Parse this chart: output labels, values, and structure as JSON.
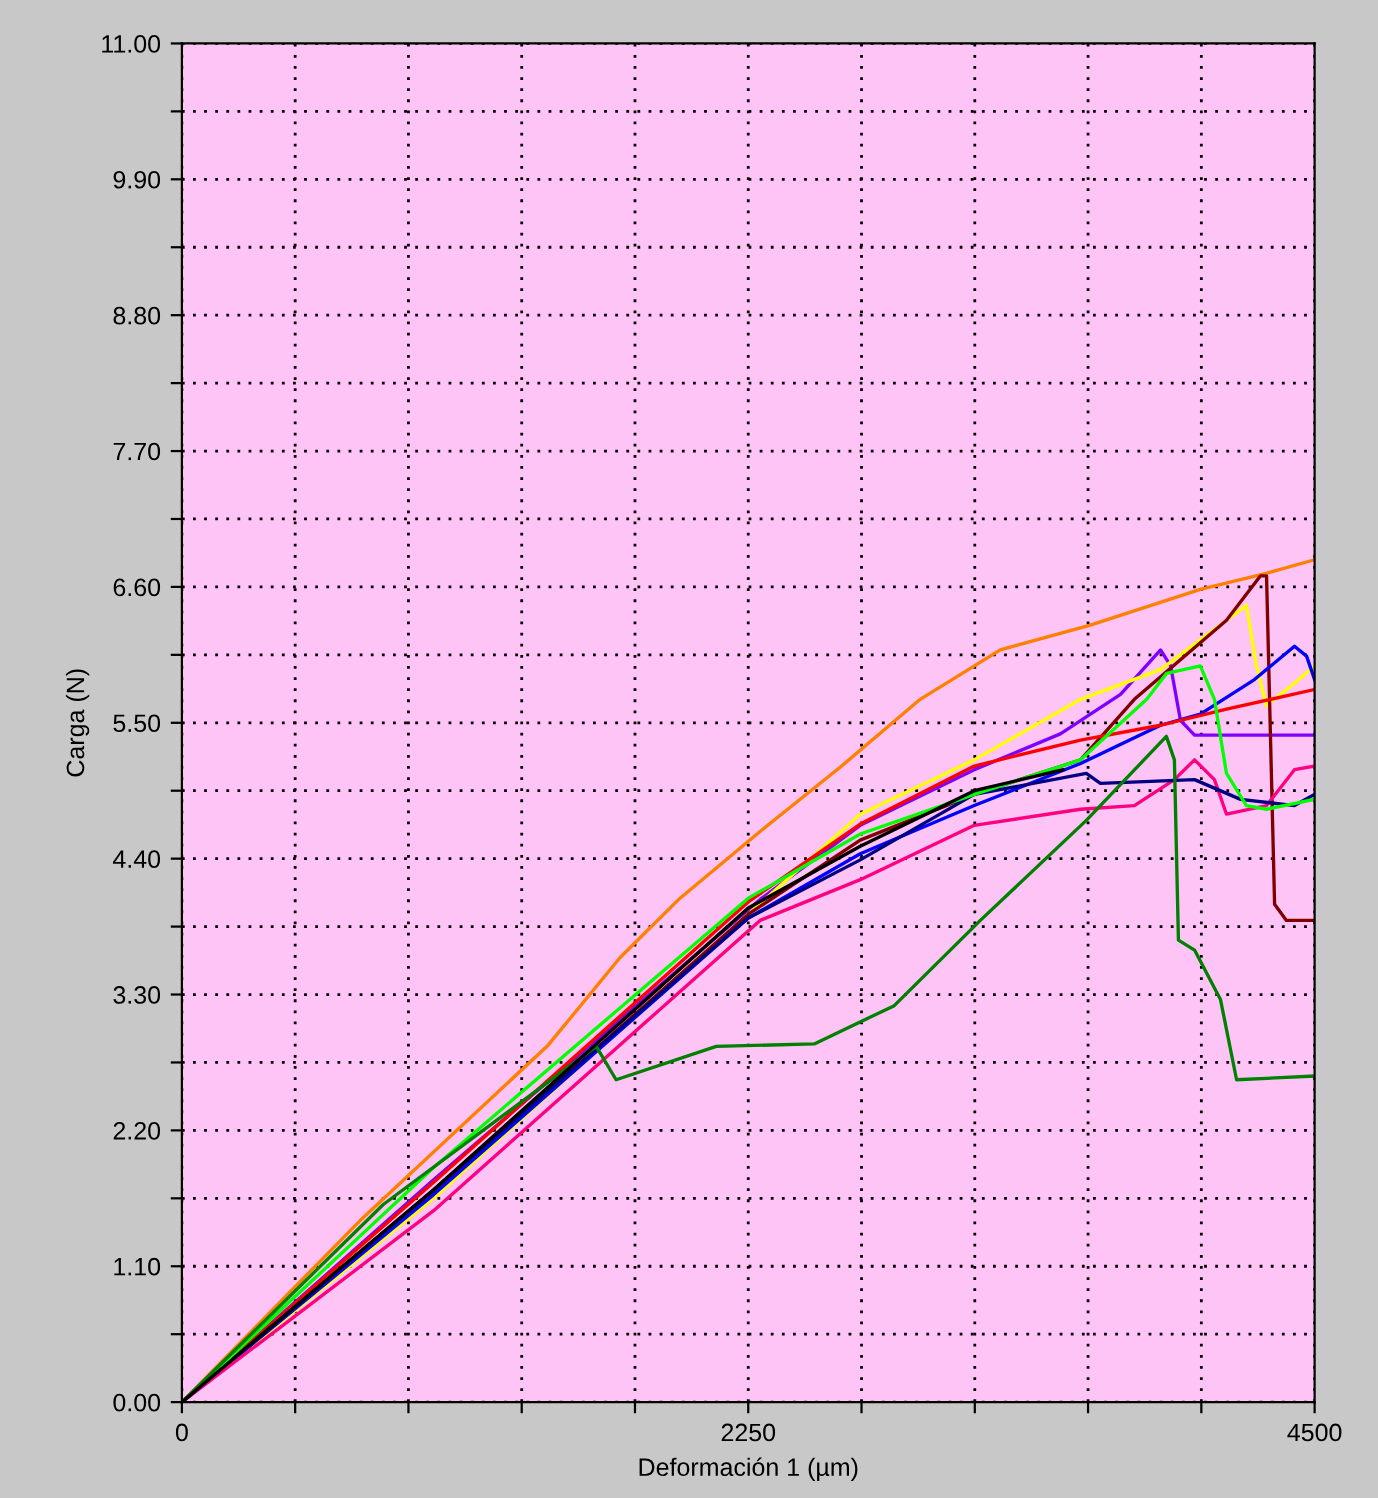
{
  "chart_data": {
    "type": "line",
    "xlabel": "Deformación 1 (µm)",
    "ylabel": "Carga (N)",
    "xlim": [
      0,
      4500
    ],
    "ylim": [
      0,
      11
    ],
    "xticks": [
      0,
      {
        "value": 450,
        "label": null
      },
      {
        "value": 900,
        "label": null
      },
      {
        "value": 1350,
        "label": null
      },
      {
        "value": 1800,
        "label": null
      },
      2250,
      {
        "value": 2700,
        "label": null
      },
      {
        "value": 3150,
        "label": null
      },
      {
        "value": 3600,
        "label": null
      },
      {
        "value": 4050,
        "label": null
      },
      4500
    ],
    "yticks": [
      {
        "value": 0,
        "label": "0.00"
      },
      {
        "value": 0.55,
        "label": null
      },
      {
        "value": 1.1,
        "label": "1.10"
      },
      {
        "value": 1.65,
        "label": null
      },
      {
        "value": 2.2,
        "label": "2.20"
      },
      {
        "value": 2.75,
        "label": null
      },
      {
        "value": 3.3,
        "label": "3.30"
      },
      {
        "value": 3.85,
        "label": null
      },
      {
        "value": 4.4,
        "label": "4.40"
      },
      {
        "value": 4.95,
        "label": null
      },
      {
        "value": 5.5,
        "label": "5.50"
      },
      {
        "value": 6.05,
        "label": null
      },
      {
        "value": 6.6,
        "label": "6.60"
      },
      {
        "value": 7.15,
        "label": null
      },
      {
        "value": 7.7,
        "label": "7.70"
      },
      {
        "value": 8.25,
        "label": null
      },
      {
        "value": 8.8,
        "label": "8.80"
      },
      {
        "value": 9.35,
        "label": null
      },
      {
        "value": 9.9,
        "label": "9.90"
      },
      {
        "value": 10.45,
        "label": null
      },
      {
        "value": 11,
        "label": "11.00"
      }
    ],
    "grid": true,
    "line_style": "solid",
    "marker": "none",
    "series": [
      {
        "color": "#ff8000",
        "x": [
          0,
          708,
          1455,
          1741,
          1979,
          2297,
          2615,
          2933,
          3251,
          3609,
          4046,
          4308,
          4500
        ],
        "values": [
          0,
          1.47,
          2.89,
          3.6,
          4.08,
          4.62,
          5.14,
          5.69,
          6.09,
          6.29,
          6.58,
          6.71,
          6.82
        ]
      },
      {
        "color": "#8000ff",
        "x": [
          0,
          1000,
          2297,
          2695,
          3148,
          3490,
          3729,
          3888,
          3928,
          3967,
          4023,
          4500
        ],
        "values": [
          0,
          1.8,
          4.07,
          4.67,
          5.12,
          5.41,
          5.73,
          6.09,
          5.96,
          5.52,
          5.4,
          5.4
        ]
      },
      {
        "color": "#ffff00",
        "x": [
          0,
          1000,
          2250,
          2695,
          3148,
          3570,
          3888,
          4150,
          4229,
          4269,
          4308,
          4420,
          4500
        ],
        "values": [
          0,
          1.65,
          3.95,
          4.76,
          5.2,
          5.69,
          5.93,
          6.33,
          6.45,
          5.96,
          5.64,
          5.82,
          5.96
        ]
      },
      {
        "color": "#800000",
        "x": [
          0,
          1000,
          2250,
          2695,
          3148,
          3570,
          3784,
          4150,
          4285,
          4309,
          4341,
          4388,
          4500
        ],
        "values": [
          0,
          1.7,
          3.95,
          4.55,
          4.92,
          5.2,
          5.69,
          6.33,
          6.69,
          6.69,
          4.03,
          3.9,
          3.9
        ]
      },
      {
        "color": "#0000ff",
        "x": [
          0,
          1000,
          2250,
          2695,
          3148,
          3570,
          3888,
          4046,
          4261,
          4420,
          4468,
          4500
        ],
        "values": [
          0,
          1.68,
          3.92,
          4.44,
          4.83,
          5.17,
          5.48,
          5.57,
          5.85,
          6.12,
          6.04,
          5.85
        ]
      },
      {
        "color": "#ff0000",
        "x": [
          0,
          1000,
          2250,
          2695,
          3148,
          3570,
          3888,
          4150,
          4500
        ],
        "values": [
          0,
          1.78,
          4.05,
          4.68,
          5.15,
          5.36,
          5.48,
          5.61,
          5.77
        ]
      },
      {
        "color": "#ff0080",
        "x": [
          0,
          1000,
          2297,
          2695,
          3148,
          3570,
          3784,
          3943,
          4023,
          4102,
          4150,
          4309,
          4420,
          4500
        ],
        "values": [
          0,
          1.55,
          3.9,
          4.23,
          4.67,
          4.8,
          4.83,
          5.04,
          5.2,
          5.04,
          4.76,
          4.83,
          5.12,
          5.15
        ]
      },
      {
        "color": "#000080",
        "x": [
          0,
          1000,
          2250,
          2695,
          3148,
          3593,
          3649,
          4023,
          4206,
          4420,
          4500
        ],
        "values": [
          0,
          1.72,
          3.92,
          4.39,
          4.92,
          5.09,
          5.01,
          5.04,
          4.88,
          4.83,
          4.92
        ]
      },
      {
        "color": "#00ff00",
        "x": [
          0,
          1000,
          2250,
          2695,
          3148,
          3570,
          3833,
          3912,
          4046,
          4102,
          4150,
          4229,
          4309,
          4500
        ],
        "values": [
          0,
          1.9,
          4.08,
          4.6,
          4.92,
          5.2,
          5.69,
          5.9,
          5.96,
          5.69,
          5.09,
          4.83,
          4.8,
          4.88
        ]
      },
      {
        "color": "#008000",
        "x": [
          0,
          800,
          1646,
          1725,
          2123,
          2512,
          2830,
          3172,
          3593,
          3911,
          3943,
          3959,
          4023,
          4126,
          4190,
          4500
        ],
        "values": [
          0,
          1.6,
          2.88,
          2.61,
          2.88,
          2.9,
          3.21,
          3.9,
          4.71,
          5.39,
          5.2,
          3.74,
          3.66,
          3.26,
          2.61,
          2.64
        ]
      },
      {
        "color": "#000000",
        "x": [
          0,
          1000,
          2250,
          2695,
          3148,
          3500
        ],
        "values": [
          0,
          1.72,
          4.0,
          4.5,
          4.95,
          5.12
        ]
      }
    ]
  }
}
